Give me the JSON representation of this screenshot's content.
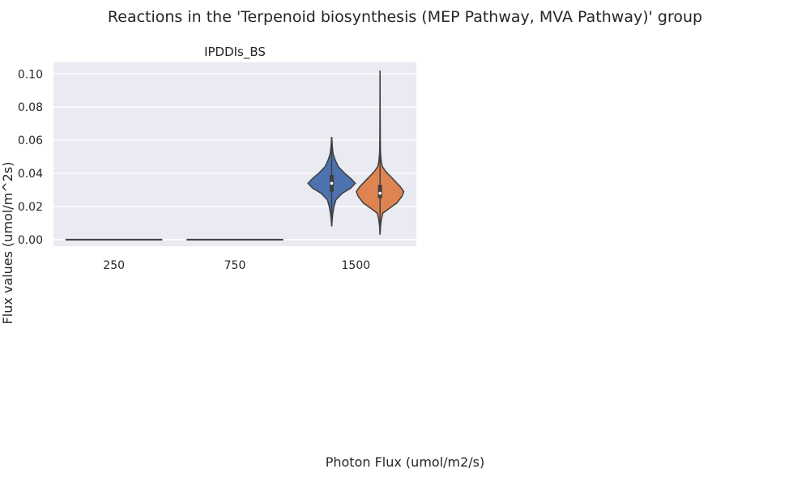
{
  "chart_data": {
    "type": "violin",
    "title": "Reactions in the 'Terpenoid biosynthesis (MEP Pathway, MVA Pathway)' group",
    "subplot_title": "IPDDIs_BS",
    "xlabel": "Photon Flux (umol/m2/s)",
    "ylabel": "Flux values (umol/m^2s)",
    "categories": [
      "250",
      "750",
      "1500"
    ],
    "ylim": [
      -0.004,
      0.107
    ],
    "yticks": [
      0.0,
      0.02,
      0.04,
      0.06,
      0.08,
      0.1
    ],
    "ytick_labels": [
      "0.00",
      "0.02",
      "0.04",
      "0.06",
      "0.08",
      "0.10"
    ],
    "grid": true,
    "background": "#eaeaf2",
    "series": [
      {
        "color": "#4c72b0",
        "violins": [
          {
            "category": "250",
            "min": 0.0,
            "q1": 0.0,
            "median": 0.0,
            "q3": 0.0,
            "max": 0.0,
            "flat": true
          },
          {
            "category": "750",
            "min": 0.0,
            "q1": 0.0,
            "median": 0.0,
            "q3": 0.0,
            "max": 0.0,
            "flat": true
          },
          {
            "category": "1500",
            "min": 0.008,
            "q1": 0.029,
            "median": 0.034,
            "q3": 0.039,
            "max": 0.062,
            "density": [
              [
                0.008,
                0.0
              ],
              [
                0.012,
                0.02
              ],
              [
                0.016,
                0.05
              ],
              [
                0.02,
                0.1
              ],
              [
                0.024,
                0.18
              ],
              [
                0.028,
                0.45
              ],
              [
                0.031,
                0.8
              ],
              [
                0.034,
                1.0
              ],
              [
                0.037,
                0.8
              ],
              [
                0.04,
                0.55
              ],
              [
                0.044,
                0.28
              ],
              [
                0.048,
                0.15
              ],
              [
                0.052,
                0.06
              ],
              [
                0.056,
                0.03
              ],
              [
                0.06,
                0.01
              ],
              [
                0.062,
                0.0
              ]
            ]
          }
        ]
      },
      {
        "color": "#dd8452",
        "violins": [
          {
            "category": "1500",
            "min": 0.003,
            "q1": 0.025,
            "median": 0.028,
            "q3": 0.033,
            "max": 0.102,
            "density": [
              [
                0.003,
                0.0
              ],
              [
                0.008,
                0.02
              ],
              [
                0.012,
                0.05
              ],
              [
                0.016,
                0.12
              ],
              [
                0.019,
                0.4
              ],
              [
                0.022,
                0.7
              ],
              [
                0.026,
                0.92
              ],
              [
                0.029,
                1.0
              ],
              [
                0.032,
                0.85
              ],
              [
                0.035,
                0.65
              ],
              [
                0.038,
                0.45
              ],
              [
                0.041,
                0.25
              ],
              [
                0.044,
                0.1
              ],
              [
                0.047,
                0.05
              ],
              [
                0.052,
                0.02
              ],
              [
                0.06,
                0.01
              ],
              [
                0.08,
                0.005
              ],
              [
                0.102,
                0.0
              ]
            ]
          }
        ]
      }
    ]
  }
}
